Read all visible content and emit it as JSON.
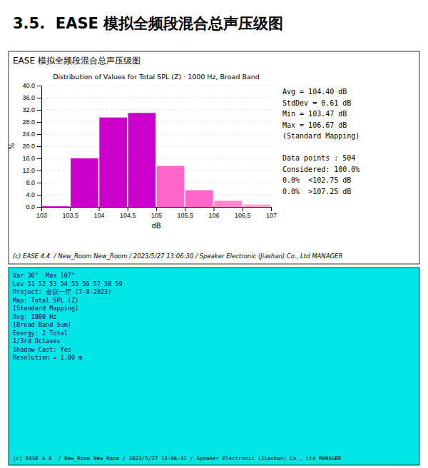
{
  "chart_data": {
    "type": "bar",
    "title": "3.5.  EASE 模拟全频段混合总声压级图",
    "subtitle": "Distribution of Values for Total SPL (Z) · 1000 Hz, Broad Band",
    "xlabel": "dB",
    "ylabel": "%",
    "x": [
      103.25,
      103.75,
      104.25,
      104.75,
      105.25,
      105.75,
      106.25,
      106.75
    ],
    "values": [
      0.2,
      16.0,
      29.5,
      31.0,
      13.5,
      5.5,
      2.0,
      0.8
    ],
    "colors": [
      "#cc00cc",
      "#cc00cc",
      "#cc00cc",
      "#cc00cc",
      "#ff66cc",
      "#ff66cc",
      "#ff88cc",
      "#ffaacc"
    ],
    "xlim": [
      103.0,
      107.0
    ],
    "ylim": [
      0.0,
      40.0
    ],
    "xticks": [
      103,
      103.5,
      104,
      104.5,
      105,
      105.5,
      106,
      106.5,
      107
    ],
    "yticks": [
      {
        "value": 0.0,
        "label": "0.0"
      },
      {
        "value": 4.0,
        "label": "4.0"
      },
      {
        "value": 8.0,
        "label": "8.0"
      },
      {
        "value": 12.0,
        "label": "12.0"
      },
      {
        "value": 16.0,
        "label": "16.0"
      },
      {
        "value": 20.0,
        "label": "20.0"
      },
      {
        "value": 24.0,
        "label": "24.0"
      },
      {
        "value": 28.0,
        "label": "28.0"
      },
      {
        "value": 32.0,
        "label": "32.0"
      },
      {
        "value": 36.0,
        "label": "36.0"
      },
      {
        "value": 40.0,
        "label": "40.0"
      }
    ],
    "grid": true,
    "annotations": [
      "EASE 模拟全频段混合总声压级图",
      "Avg = 104.40 dB\nStdDev = 0.61 dB\nMin = 103.47 dB\nMax = 106.67 dB\n(Standard Mapping)\n\nData points : 504\nConsidered: 100.0%\n0.0%  <102.75 dB\n0.0%  >107.25 dB",
      "(c) EASE 4.4  / New_Room New_Room / 2023/5/27 13:06:30 / Speaker Electronic (Jiashan) Co., Ltd MANAGER",
      "Var 30°  Max 107°\nLev 51 52 53 54 55 56 57 58 59\nProject: 会议一厅 (7-8-2023)\nMap: Total SPL (Z)\n[Standard Mapping]\nAvg: 1000 Hz\n[Broad Band Sum]\nEnergy: 2 Total\n1/3rd Octaves\nShadow Cast: Yes\nResolution = 1.00 m",
      "(c) EASE 4.4  / New_Room New_Room / 2023/5/27 13:06:41 / Speaker Electronic (Jiashan) Co., Ltd MANAGER"
    ]
  }
}
